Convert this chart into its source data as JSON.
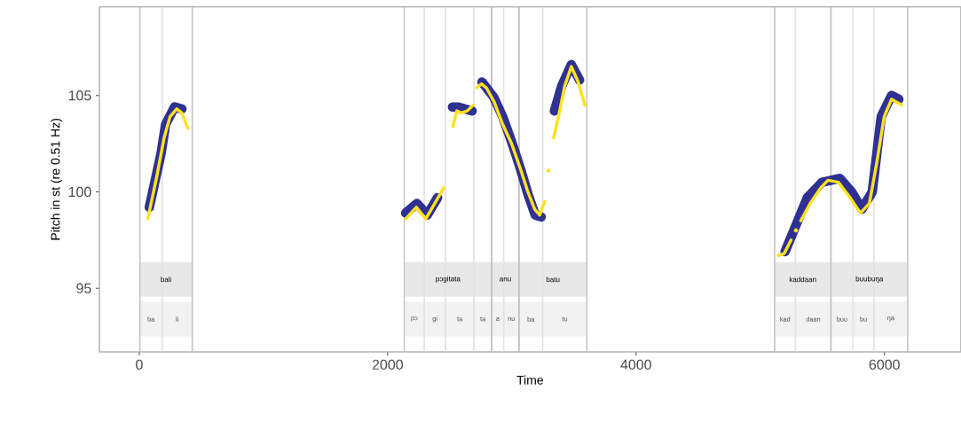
{
  "chart_data": {
    "type": "line",
    "xlabel": "Time",
    "ylabel": "Pitch in st (re 0.51 Hz)",
    "xlim": [
      -321,
      6614
    ],
    "ylim": [
      91.7,
      109.6
    ],
    "xticks": [
      0,
      2000,
      4000,
      6000
    ],
    "yticks": [
      95,
      100,
      105
    ],
    "series": [
      {
        "color": "#2e3192",
        "x": [
          81,
          176,
          212,
          284,
          343,
          null,
          2145,
          2236,
          2319,
          2402,
          null,
          2522,
          2570,
          2620,
          2680,
          null,
          2760,
          2855,
          2926,
          2998,
          3069,
          3129,
          3188,
          3236,
          null,
          3343,
          3402,
          3479,
          3545,
          null,
          5200,
          5379,
          5498,
          5641,
          5736,
          5819,
          5902,
          5974,
          6057,
          6116
        ],
        "values": [
          99.2,
          102.0,
          103.5,
          104.4,
          104.3,
          null,
          98.9,
          99.4,
          98.8,
          99.7,
          null,
          104.4,
          104.4,
          104.3,
          104.2,
          null,
          105.7,
          104.9,
          103.9,
          102.6,
          101.2,
          99.9,
          98.8,
          98.7,
          null,
          104.2,
          105.5,
          106.6,
          105.8,
          null,
          96.9,
          99.7,
          100.5,
          100.7,
          100.0,
          99.1,
          100.0,
          103.9,
          105.0,
          104.8
        ]
      },
      {
        "color": "#ffe11f",
        "x": [
          69,
          141,
          200,
          248,
          302,
          343,
          391,
          null,
          2145,
          2231,
          2307,
          2379,
          2450,
          null,
          2526,
          2557,
          2593,
          2641,
          2688,
          null,
          2717,
          2755,
          2795,
          2855,
          2926,
          2998,
          3069,
          3129,
          3184,
          3224,
          3264,
          null,
          3295,
          null,
          3336,
          3379,
          3426,
          3479,
          3534,
          3588,
          null,
          5145,
          5193,
          5248,
          null,
          5288,
          null,
          5326,
          5402,
          5486,
          5545,
          5629,
          5712,
          5807,
          5879,
          5938,
          5998,
          6057,
          6140
        ],
        "values": [
          98.6,
          100.8,
          102.8,
          103.9,
          104.3,
          104.1,
          103.3,
          null,
          98.6,
          99.2,
          98.6,
          99.4,
          100.2,
          null,
          103.4,
          104.2,
          104.1,
          104.2,
          104.5,
          null,
          105.4,
          105.6,
          105.4,
          104.7,
          103.5,
          102.5,
          101.2,
          100.0,
          99.1,
          98.8,
          99.5,
          null,
          101.1,
          null,
          102.8,
          104.0,
          105.5,
          106.5,
          105.7,
          104.5,
          null,
          96.7,
          96.8,
          97.5,
          null,
          98.0,
          null,
          98.5,
          99.4,
          100.2,
          100.6,
          100.5,
          99.8,
          98.9,
          99.4,
          101.5,
          103.9,
          104.8,
          104.5
        ]
      }
    ],
    "bands": [
      {
        "axis": "x",
        "from": 5,
        "to": 184,
        "label": "ba",
        "color": "#f2f2f2"
      },
      {
        "axis": "x",
        "from": 184,
        "to": 426,
        "label": "li",
        "color": "#f2f2f2"
      },
      {
        "axis": "x",
        "from": 2134,
        "to": 2295,
        "label": "pɔ",
        "color": "#f2f2f2"
      },
      {
        "axis": "x",
        "from": 2295,
        "to": 2466,
        "label": "gi",
        "color": "#f2f2f2"
      },
      {
        "axis": "x",
        "from": 2466,
        "to": 2695,
        "label": "ta",
        "color": "#f2f2f2"
      },
      {
        "axis": "x",
        "from": 2695,
        "to": 2838,
        "label": "ta",
        "color": "#f2f2f2"
      },
      {
        "axis": "x",
        "from": 2838,
        "to": 2934,
        "label": "a",
        "color": "#f2f2f2"
      },
      {
        "axis": "x",
        "from": 2934,
        "to": 3057,
        "label": "nu",
        "color": "#f2f2f2"
      },
      {
        "axis": "x",
        "from": 3057,
        "to": 3248,
        "label": "ba",
        "color": "#f2f2f2"
      },
      {
        "axis": "x",
        "from": 3248,
        "to": 3605,
        "label": "tu",
        "color": "#f2f2f2"
      },
      {
        "axis": "x",
        "from": 5116,
        "to": 5284,
        "label": "kad",
        "color": "#f2f2f2"
      },
      {
        "axis": "x",
        "from": 5284,
        "to": 5569,
        "label": "daan",
        "color": "#f2f2f2"
      },
      {
        "axis": "x",
        "from": 5569,
        "to": 5748,
        "label": "buu",
        "color": "#f2f2f2"
      },
      {
        "axis": "x",
        "from": 5748,
        "to": 5914,
        "label": "bu",
        "color": "#f2f2f2"
      },
      {
        "axis": "x",
        "from": 5914,
        "to": 6188,
        "label": "ŋa",
        "color": "#f2f2f2"
      },
      {
        "axis": "x",
        "from": 5,
        "to": 426,
        "label": "bali",
        "color": "#e8e8e8"
      },
      {
        "axis": "x",
        "from": 2134,
        "to": 2838,
        "label": "pɔgitata",
        "color": "#e8e8e8"
      },
      {
        "axis": "x",
        "from": 2838,
        "to": 3057,
        "label": "anu",
        "color": "#e8e8e8"
      },
      {
        "axis": "x",
        "from": 3057,
        "to": 3605,
        "label": "batu",
        "color": "#e8e8e8"
      },
      {
        "axis": "x",
        "from": 5116,
        "to": 5569,
        "label": "kaddaan",
        "color": "#e8e8e8"
      },
      {
        "axis": "x",
        "from": 5569,
        "to": 6188,
        "label": "buubuŋa",
        "color": "#e8e8e8"
      }
    ]
  }
}
